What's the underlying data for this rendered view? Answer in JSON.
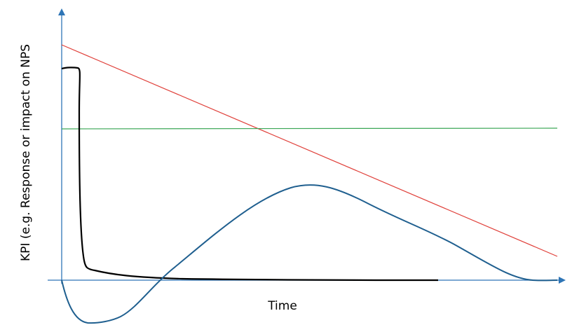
{
  "y_axis_label": "KPI (e.g. Response or impact on NPS",
  "x_axis_label": "Time"
}
